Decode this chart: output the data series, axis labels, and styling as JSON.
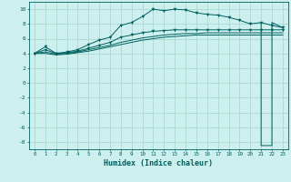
{
  "title": "",
  "xlabel": "Humidex (Indice chaleur)",
  "bg_color": "#cdf0ee",
  "grid_color": "#a8d8d0",
  "line_color": "#005f5f",
  "x_ticks": [
    0,
    1,
    2,
    3,
    4,
    5,
    6,
    7,
    8,
    9,
    10,
    11,
    12,
    13,
    14,
    15,
    16,
    17,
    18,
    19,
    20,
    21,
    22,
    23
  ],
  "xlim": [
    -0.5,
    23.5
  ],
  "ylim": [
    -9,
    11
  ],
  "yticks": [
    -8,
    -6,
    -4,
    -2,
    0,
    2,
    4,
    6,
    8,
    10
  ],
  "series1": [
    4.0,
    4.9,
    4.0,
    4.2,
    4.5,
    5.2,
    5.8,
    6.2,
    7.8,
    8.2,
    9.0,
    10.0,
    9.8,
    10.0,
    9.9,
    9.5,
    9.3,
    9.2,
    8.9,
    8.5,
    8.0,
    8.2,
    7.8,
    7.5
  ],
  "series2": [
    4.0,
    4.5,
    4.0,
    4.1,
    4.3,
    4.7,
    5.1,
    5.5,
    6.2,
    6.5,
    6.8,
    7.0,
    7.1,
    7.2,
    7.2,
    7.2,
    7.2,
    7.2,
    7.2,
    7.2,
    7.2,
    7.2,
    7.2,
    7.2
  ],
  "series3": [
    4.0,
    4.2,
    3.9,
    4.0,
    4.2,
    4.5,
    4.8,
    5.1,
    5.5,
    5.8,
    6.1,
    6.3,
    6.5,
    6.6,
    6.7,
    6.7,
    6.8,
    6.8,
    6.8,
    6.8,
    6.8,
    6.8,
    6.8,
    6.8
  ],
  "series4": [
    4.0,
    4.0,
    3.8,
    3.9,
    4.1,
    4.3,
    4.6,
    4.9,
    5.2,
    5.5,
    5.8,
    6.0,
    6.2,
    6.3,
    6.4,
    6.5,
    6.5,
    6.5,
    6.5,
    6.5,
    6.5,
    6.5,
    6.5,
    6.5
  ],
  "spike_x": [
    21,
    21,
    22,
    22,
    23
  ],
  "spike_y": [
    8.2,
    -8.5,
    -8.5,
    8.2,
    7.5
  ],
  "marker_size": 2.5
}
